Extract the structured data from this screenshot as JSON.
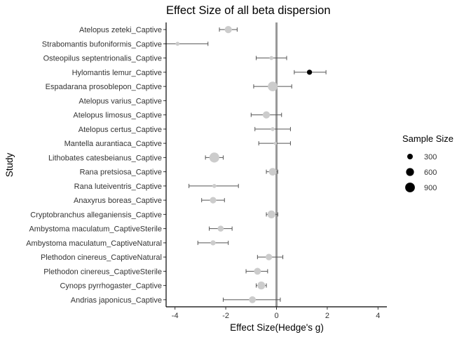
{
  "chart_data": {
    "type": "forest",
    "title": "Effect Size of all beta dispersion",
    "xlabel": "Effect Size(Hedge's g)",
    "ylabel": "Study",
    "xlim": [
      -4.35,
      4.35
    ],
    "xticks": [
      -4,
      -2,
      0,
      2,
      4
    ],
    "reference_line": 0,
    "grid": false,
    "legend": {
      "title": "Sample Size",
      "position": "right",
      "entries": [
        {
          "label": "300",
          "size": 300
        },
        {
          "label": "600",
          "size": 600
        },
        {
          "label": "900",
          "size": 900
        }
      ]
    },
    "colors": {
      "significant": "#000000",
      "non_significant": "#cccccc",
      "error_bar": "#555555",
      "reference_line": "#999999"
    },
    "studies": [
      {
        "label": "Atelopus zeteki_Captive",
        "g": -1.9,
        "lower": -2.25,
        "upper": -1.55,
        "n": 500,
        "significant": false
      },
      {
        "label": "Strabomantis bufoniformis_Captive",
        "g": -3.9,
        "lower": -4.35,
        "upper": -2.7,
        "n": 150,
        "significant": false
      },
      {
        "label": "Osteopilus septentrionalis_Captive",
        "g": -0.2,
        "lower": -0.8,
        "upper": 0.4,
        "n": 150,
        "significant": false
      },
      {
        "label": "Hylomantis lemur_Captive",
        "g": 1.3,
        "lower": 0.7,
        "upper": 1.95,
        "n": 250,
        "significant": true
      },
      {
        "label": "Espadarana prosoblepon_Captive",
        "g": -0.15,
        "lower": -0.9,
        "upper": 0.6,
        "n": 900,
        "significant": false
      },
      {
        "label": "Atelopus varius_Captive",
        "g": null,
        "lower": null,
        "upper": null,
        "n": null,
        "significant": false
      },
      {
        "label": "Atelopus limosus_Captive",
        "g": -0.4,
        "lower": -1.0,
        "upper": 0.2,
        "n": 500,
        "significant": false
      },
      {
        "label": "Atelopus certus_Captive",
        "g": -0.15,
        "lower": -0.85,
        "upper": 0.55,
        "n": 150,
        "significant": false
      },
      {
        "label": "Mantella aurantiaca_Captive",
        "g": -0.05,
        "lower": -0.7,
        "upper": 0.55,
        "n": 100,
        "significant": false
      },
      {
        "label": "Lithobates catesbeianus_Captive",
        "g": -2.45,
        "lower": -2.8,
        "upper": -2.1,
        "n": 950,
        "significant": false
      },
      {
        "label": "Rana pretsiosa_Captive",
        "g": -0.15,
        "lower": -0.4,
        "upper": 0.05,
        "n": 550,
        "significant": false
      },
      {
        "label": "Rana luteiventris_Captive",
        "g": -2.45,
        "lower": -3.45,
        "upper": -1.5,
        "n": 150,
        "significant": false
      },
      {
        "label": "Anaxyrus boreas_Captive",
        "g": -2.5,
        "lower": -2.95,
        "upper": -2.05,
        "n": 400,
        "significant": false
      },
      {
        "label": "Cryptobranchus alleganiensis_Captive",
        "g": -0.2,
        "lower": -0.4,
        "upper": 0.05,
        "n": 600,
        "significant": false
      },
      {
        "label": "Ambystoma maculatum_CaptiveSterile",
        "g": -2.2,
        "lower": -2.65,
        "upper": -1.75,
        "n": 350,
        "significant": false
      },
      {
        "label": "Ambystoma maculatum_CaptiveNatural",
        "g": -2.5,
        "lower": -3.1,
        "upper": -1.9,
        "n": 250,
        "significant": false
      },
      {
        "label": "Plethodon cinereus_CaptiveNatural",
        "g": -0.3,
        "lower": -0.75,
        "upper": 0.25,
        "n": 400,
        "significant": false
      },
      {
        "label": "Plethodon cinereus_CaptiveSterile",
        "g": -0.75,
        "lower": -1.2,
        "upper": -0.35,
        "n": 450,
        "significant": false
      },
      {
        "label": "Cynops pyrrhogaster_Captive",
        "g": -0.6,
        "lower": -0.8,
        "upper": -0.4,
        "n": 600,
        "significant": false
      },
      {
        "label": "Andrias japonicus_Captive",
        "g": -0.95,
        "lower": -2.1,
        "upper": 0.15,
        "n": 450,
        "significant": false
      }
    ]
  }
}
